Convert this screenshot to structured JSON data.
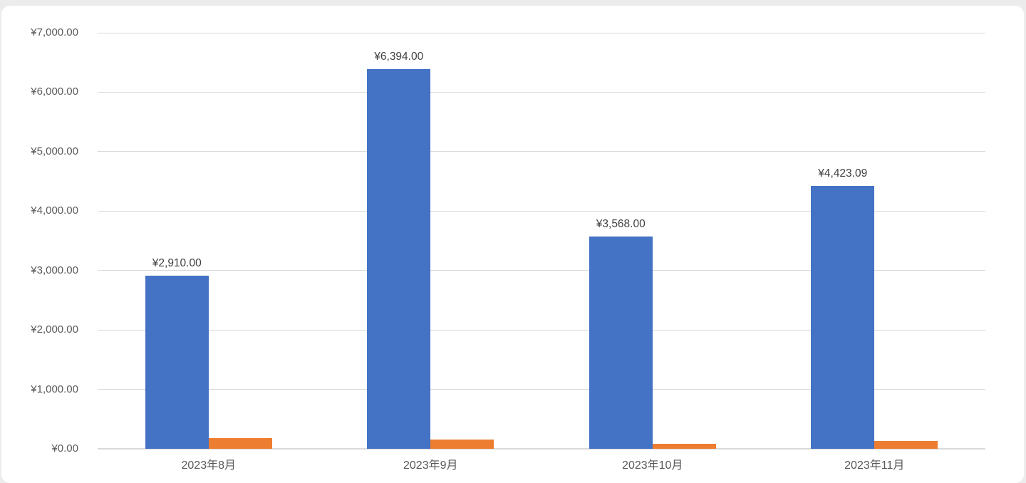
{
  "chart_data": {
    "type": "bar",
    "title": "",
    "categories": [
      "2023年8月",
      "2023年9月",
      "2023年10月",
      "2023年11月"
    ],
    "series": [
      {
        "id": "blue",
        "color": "#4472C4",
        "values": [
          2910,
          6394,
          3568,
          4423.09
        ],
        "data_labels": [
          "¥2,910.00",
          "¥6,394.00",
          "¥3,568.00",
          "¥4,423.09"
        ]
      },
      {
        "id": "orange",
        "color": "#ED7D31",
        "values": [
          180,
          150,
          85,
          130
        ],
        "data_labels": []
      }
    ],
    "y_axis": {
      "min": 0,
      "max": 7000,
      "tick_interval": 1000,
      "tick_labels": [
        "¥0.00",
        "¥1,000.00",
        "¥2,000.00",
        "¥3,000.00",
        "¥4,000.00",
        "¥5,000.00",
        "¥6,000.00",
        "¥7,000.00"
      ]
    },
    "xlabel": "",
    "ylabel": "",
    "grid": true,
    "legend": "none"
  },
  "colors": {
    "page_background": "#ececec",
    "card_background": "#ffffff",
    "gridline": "#d9d9d9",
    "axis_label_text": "#595959",
    "data_label_text": "#404040",
    "series_blue": "#4472C4",
    "series_orange": "#ED7D31"
  }
}
